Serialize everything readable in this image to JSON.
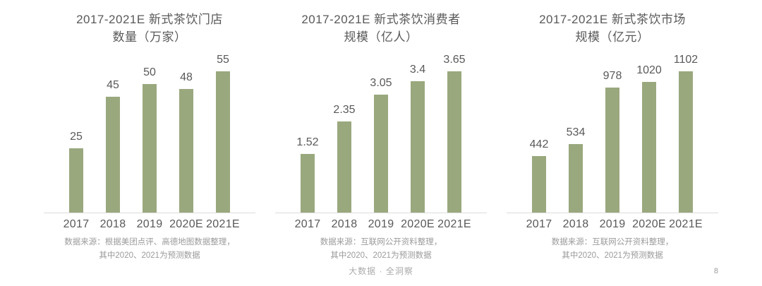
{
  "page": {
    "footer_text": "大数据 · 全洞察",
    "page_number": "8",
    "colors": {
      "bar": "#9AA87E",
      "text": "#595959",
      "source_text": "#9B9B9B",
      "axis_line": "#DCDCDC",
      "footer_text_color": "#ABABAB"
    }
  },
  "chart_data": [
    {
      "type": "bar",
      "title_line1": "2017-2021E 新式茶饮门店",
      "title_line2": "数量（万家）",
      "categories": [
        "2017",
        "2018",
        "2019",
        "2020E",
        "2021E"
      ],
      "values": [
        25,
        45,
        50,
        48,
        55
      ],
      "ylim": [
        0,
        55
      ],
      "grid": false,
      "legend": "none",
      "source_line1": "数据来源：根据美团点评、高德地图数据整理，",
      "source_line2": "其中2020、2021为预测数据"
    },
    {
      "type": "bar",
      "title_line1": "2017-2021E 新式茶饮消费者",
      "title_line2": "规模（亿人）",
      "categories": [
        "2017",
        "2018",
        "2019",
        "2020E",
        "2021E"
      ],
      "values": [
        1.52,
        2.35,
        3.05,
        3.4,
        3.65
      ],
      "ylim": [
        0,
        3.65
      ],
      "grid": false,
      "legend": "none",
      "source_line1": "数据来源：互联网公开资料整理，",
      "source_line2": "其中2020、2021为预测数据"
    },
    {
      "type": "bar",
      "title_line1": "2017-2021E 新式茶饮市场",
      "title_line2": "规模（亿元）",
      "categories": [
        "2017",
        "2018",
        "2019",
        "2020E",
        "2021E"
      ],
      "values": [
        442,
        534,
        978,
        1020,
        1102
      ],
      "ylim": [
        0,
        1102
      ],
      "grid": false,
      "legend": "none",
      "source_line1": "数据来源：互联网公开资料整理，",
      "source_line2": "其中2020、2021为预测数据"
    }
  ]
}
